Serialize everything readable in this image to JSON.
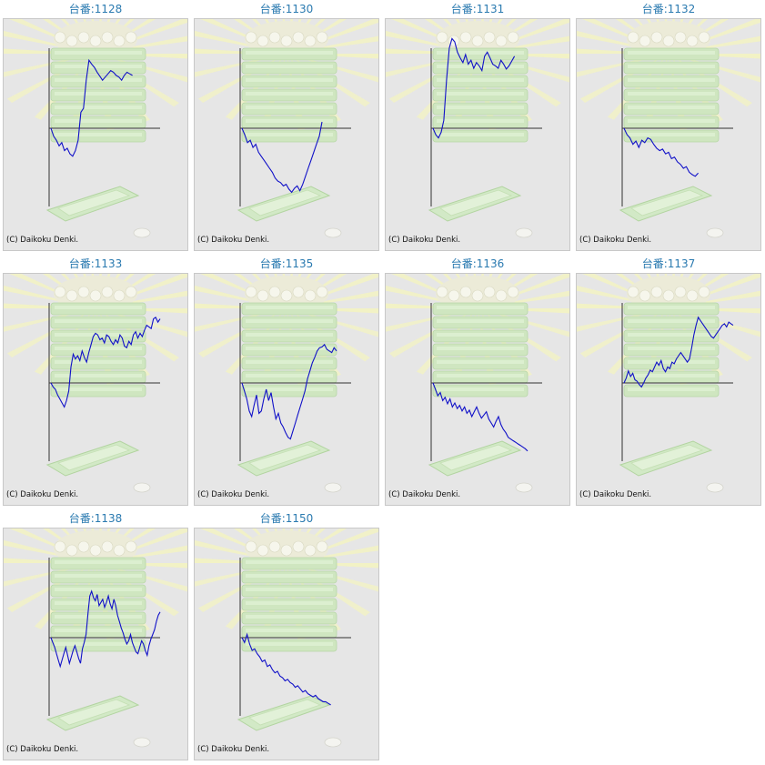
{
  "copyright": "(C) Daikoku Denki.",
  "colors": {
    "line": "#1010c8",
    "title": "#2a7ab0",
    "axis": "#333333"
  },
  "chart_data": [
    {
      "type": "line",
      "title": "台番:1128",
      "ylim": [
        -100,
        100
      ],
      "x": [
        0,
        1,
        2,
        3,
        4,
        5,
        6,
        7,
        8,
        9,
        10,
        11,
        12,
        13,
        14,
        15,
        16,
        17,
        18,
        19,
        20,
        21,
        22,
        23,
        24,
        25,
        26,
        27,
        28,
        29,
        30
      ],
      "y": [
        0,
        -10,
        -15,
        -22,
        -18,
        -28,
        -25,
        -32,
        -35,
        -28,
        -15,
        20,
        25,
        60,
        85,
        80,
        76,
        70,
        65,
        60,
        64,
        68,
        72,
        70,
        66,
        64,
        60,
        66,
        70,
        68,
        66
      ]
    },
    {
      "type": "line",
      "title": "台番:1130",
      "ylim": [
        -100,
        100
      ],
      "x": [
        0,
        1,
        2,
        3,
        4,
        5,
        6,
        7,
        8,
        9,
        10,
        11,
        12,
        13,
        14,
        15,
        16,
        17,
        18,
        19,
        20,
        21,
        22,
        23,
        24,
        25,
        26,
        27,
        28,
        29
      ],
      "y": [
        0,
        -8,
        -18,
        -15,
        -24,
        -20,
        -30,
        -35,
        -40,
        -45,
        -50,
        -55,
        -62,
        -66,
        -68,
        -72,
        -70,
        -76,
        -80,
        -75,
        -72,
        -78,
        -70,
        -60,
        -50,
        -40,
        -30,
        -20,
        -10,
        8
      ]
    },
    {
      "type": "line",
      "title": "台番:1131",
      "ylim": [
        -100,
        100
      ],
      "x": [
        0,
        1,
        2,
        3,
        4,
        5,
        6,
        7,
        8,
        9,
        10,
        11,
        12,
        13,
        14,
        15,
        16,
        17,
        18,
        19,
        20,
        21,
        22,
        23,
        24,
        25,
        26,
        27,
        28,
        29,
        30
      ],
      "y": [
        0,
        -8,
        -12,
        -5,
        10,
        60,
        100,
        112,
        108,
        95,
        88,
        82,
        92,
        80,
        85,
        75,
        82,
        78,
        72,
        90,
        95,
        88,
        80,
        78,
        75,
        85,
        80,
        74,
        78,
        84,
        90
      ]
    },
    {
      "type": "line",
      "title": "台番:1132",
      "ylim": [
        -100,
        100
      ],
      "x": [
        0,
        1,
        2,
        3,
        4,
        5,
        6,
        7,
        8,
        9,
        10,
        11,
        12,
        13,
        14,
        15,
        16,
        17,
        18,
        19,
        20,
        21,
        22,
        23,
        24,
        25
      ],
      "y": [
        0,
        -8,
        -12,
        -20,
        -16,
        -24,
        -15,
        -18,
        -12,
        -14,
        -20,
        -25,
        -28,
        -26,
        -32,
        -30,
        -38,
        -36,
        -42,
        -45,
        -50,
        -48,
        -55,
        -58,
        -60,
        -56
      ]
    },
    {
      "type": "line",
      "title": "台番:1133",
      "ylim": [
        -100,
        100
      ],
      "x": [
        0,
        1,
        2,
        3,
        4,
        5,
        6,
        7,
        8,
        9,
        10,
        11,
        12,
        13,
        14,
        15,
        16,
        17,
        18,
        19,
        20,
        21,
        22,
        23,
        24,
        25,
        26,
        27,
        28,
        29,
        30,
        31,
        32,
        33,
        34,
        35,
        36,
        37,
        38,
        39,
        40,
        41,
        42,
        43,
        44,
        45,
        46,
        47,
        48,
        49
      ],
      "y": [
        0,
        -5,
        -8,
        -15,
        -20,
        -25,
        -30,
        -22,
        -10,
        20,
        36,
        30,
        34,
        28,
        40,
        32,
        26,
        38,
        48,
        58,
        62,
        60,
        54,
        56,
        50,
        60,
        58,
        52,
        48,
        54,
        50,
        60,
        56,
        46,
        44,
        52,
        48,
        60,
        64,
        56,
        62,
        58,
        66,
        72,
        70,
        68,
        80,
        82,
        76,
        80
      ]
    },
    {
      "type": "line",
      "title": "台番:1135",
      "ylim": [
        -100,
        100
      ],
      "x": [
        0,
        1,
        2,
        3,
        4,
        5,
        6,
        7,
        8,
        9,
        10,
        11,
        12,
        13,
        14,
        15,
        16,
        17,
        18,
        19,
        20,
        21,
        22,
        23,
        24,
        25,
        26,
        27,
        28,
        29,
        30,
        31,
        32,
        33,
        34,
        35,
        36,
        37,
        38,
        39
      ],
      "y": [
        0,
        -10,
        -20,
        -35,
        -42,
        -28,
        -15,
        -38,
        -35,
        -20,
        -8,
        -22,
        -12,
        -30,
        -45,
        -38,
        -50,
        -55,
        -62,
        -68,
        -70,
        -60,
        -50,
        -40,
        -30,
        -20,
        -10,
        5,
        15,
        25,
        32,
        40,
        44,
        45,
        48,
        42,
        40,
        38,
        44,
        40
      ]
    },
    {
      "type": "line",
      "title": "台番:1136",
      "ylim": [
        -100,
        100
      ],
      "x": [
        0,
        1,
        2,
        3,
        4,
        5,
        6,
        7,
        8,
        9,
        10,
        11,
        12,
        13,
        14,
        15,
        16,
        17,
        18,
        19,
        20,
        21,
        22,
        23,
        24,
        25,
        26,
        27,
        28,
        29,
        30,
        31,
        32,
        33,
        34,
        35,
        36,
        37,
        38,
        39
      ],
      "y": [
        0,
        -8,
        -16,
        -12,
        -22,
        -18,
        -26,
        -20,
        -30,
        -25,
        -32,
        -28,
        -35,
        -30,
        -38,
        -34,
        -42,
        -36,
        -30,
        -38,
        -44,
        -40,
        -36,
        -45,
        -50,
        -55,
        -48,
        -42,
        -52,
        -58,
        -62,
        -68,
        -70,
        -72,
        -74,
        -76,
        -78,
        -80,
        -82,
        -85
      ]
    },
    {
      "type": "line",
      "title": "台番:1137",
      "ylim": [
        -100,
        100
      ],
      "x": [
        0,
        1,
        2,
        3,
        4,
        5,
        6,
        7,
        8,
        9,
        10,
        11,
        12,
        13,
        14,
        15,
        16,
        17,
        18,
        19,
        20,
        21,
        22,
        23,
        24,
        25,
        26,
        27,
        28,
        29,
        30,
        31,
        32,
        33,
        34,
        35,
        36,
        37,
        38,
        39,
        40,
        41,
        42,
        43,
        44,
        45,
        46,
        47,
        48,
        49,
        50
      ],
      "y": [
        0,
        6,
        15,
        8,
        12,
        4,
        2,
        -2,
        -5,
        0,
        6,
        10,
        16,
        14,
        20,
        26,
        22,
        28,
        18,
        14,
        20,
        18,
        26,
        24,
        30,
        34,
        38,
        34,
        30,
        26,
        30,
        44,
        60,
        72,
        82,
        78,
        74,
        70,
        66,
        62,
        58,
        56,
        60,
        64,
        68,
        72,
        74,
        70,
        76,
        74,
        72
      ]
    },
    {
      "type": "line",
      "title": "台番:1138",
      "ylim": [
        -100,
        100
      ],
      "x": [
        0,
        1,
        2,
        3,
        4,
        5,
        6,
        7,
        8,
        9,
        10,
        11,
        12,
        13,
        14,
        15,
        16,
        17,
        18,
        19,
        20,
        21,
        22,
        23,
        24,
        25,
        26,
        27,
        28,
        29,
        30,
        31,
        32,
        33,
        34,
        35,
        36,
        37,
        38,
        39,
        40,
        41,
        42,
        43,
        44,
        45,
        46,
        47,
        48,
        49,
        50,
        51,
        52,
        53,
        54,
        55,
        56,
        57,
        58,
        59
      ],
      "y": [
        0,
        -6,
        -12,
        -20,
        -28,
        -36,
        -28,
        -20,
        -12,
        -22,
        -32,
        -24,
        -16,
        -10,
        -18,
        -26,
        -32,
        -14,
        -6,
        4,
        30,
        52,
        58,
        50,
        46,
        54,
        40,
        44,
        48,
        38,
        44,
        52,
        42,
        36,
        48,
        40,
        28,
        20,
        12,
        6,
        -2,
        -8,
        -4,
        4,
        -6,
        -12,
        -18,
        -20,
        -12,
        -4,
        -8,
        -16,
        -22,
        -10,
        -2,
        4,
        10,
        20,
        28,
        32
      ]
    },
    {
      "type": "line",
      "title": "台番:1150",
      "ylim": [
        -100,
        100
      ],
      "x": [
        0,
        1,
        2,
        3,
        4,
        5,
        6,
        7,
        8,
        9,
        10,
        11,
        12,
        13,
        14,
        15,
        16,
        17,
        18,
        19,
        20,
        21,
        22,
        23,
        24,
        25,
        26,
        27,
        28,
        29,
        30,
        31,
        32,
        33,
        34,
        35
      ],
      "y": [
        0,
        -6,
        4,
        -8,
        -16,
        -14,
        -20,
        -24,
        -30,
        -28,
        -36,
        -34,
        -40,
        -44,
        -42,
        -48,
        -50,
        -54,
        -52,
        -56,
        -58,
        -62,
        -60,
        -64,
        -68,
        -66,
        -70,
        -72,
        -74,
        -72,
        -76,
        -78,
        -80,
        -80,
        -82,
        -84
      ]
    }
  ]
}
